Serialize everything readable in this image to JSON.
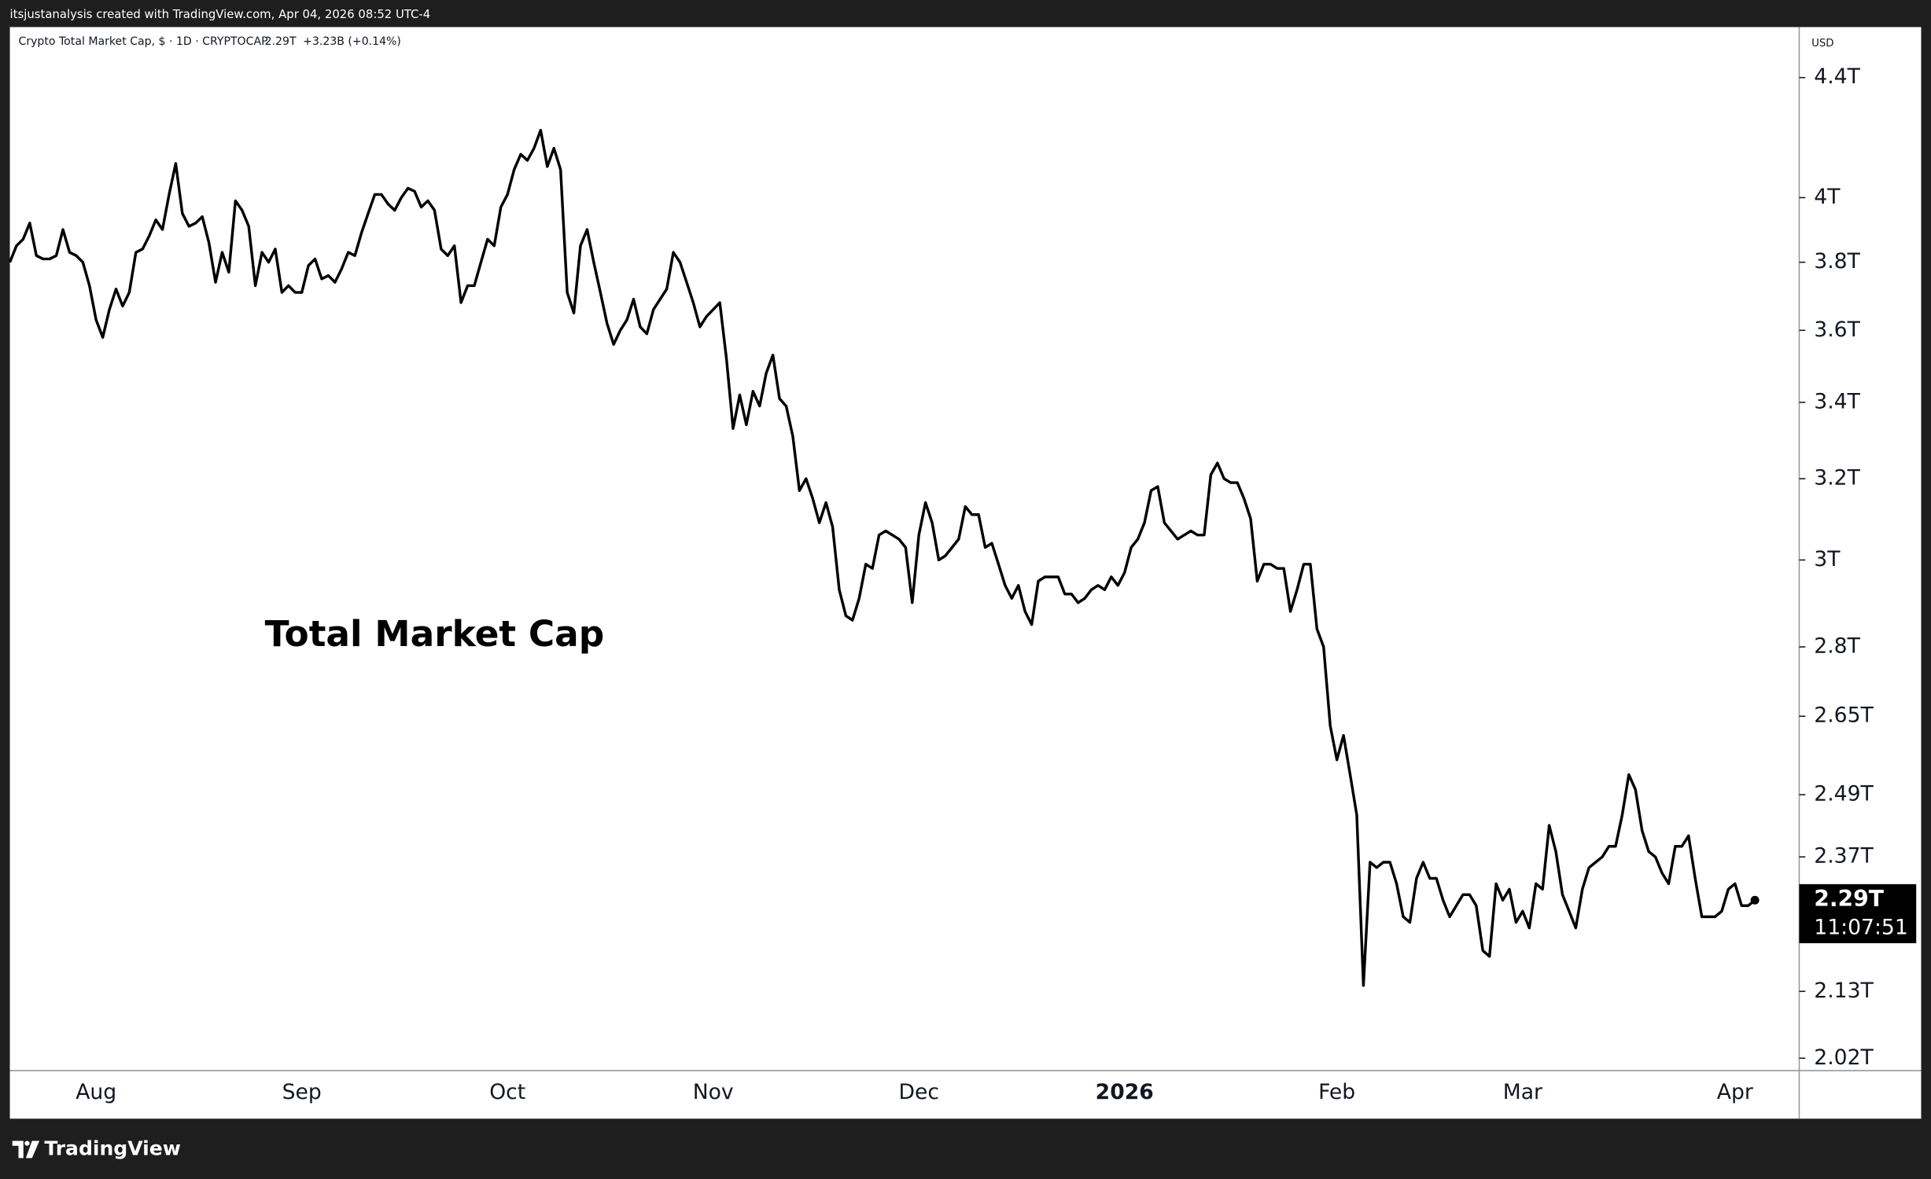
{
  "header": {
    "credit": "itsjustanalysis created with TradingView.com, Apr 04, 2026 08:52 UTC-4",
    "symbol": "Crypto Total Market Cap, $ · 1D · CRYPTOCAP",
    "last": "2.29T",
    "change": "+3.23B (+0.14%)",
    "currency": "USD"
  },
  "footer": {
    "brand": "TradingView"
  },
  "chart_data": {
    "type": "line",
    "annotation": "Total Market Cap",
    "scale": "log",
    "grid": false,
    "color": "#000000",
    "categories": [
      null,
      null,
      null,
      null,
      null,
      null,
      null,
      null,
      null,
      null,
      null,
      null,
      null,
      "Aug",
      null,
      null,
      null,
      null,
      null,
      null,
      null,
      null,
      null,
      null,
      null,
      null,
      null,
      null,
      null,
      null,
      null,
      null,
      null,
      null,
      null,
      null,
      null,
      null,
      null,
      null,
      null,
      null,
      null,
      null,
      "Sep",
      null,
      null,
      null,
      null,
      null,
      null,
      null,
      null,
      null,
      null,
      null,
      null,
      null,
      null,
      null,
      null,
      null,
      null,
      null,
      null,
      null,
      null,
      null,
      null,
      null,
      null,
      null,
      null,
      null,
      null,
      "Oct",
      null,
      null,
      null,
      null,
      null,
      null,
      null,
      null,
      null,
      null,
      null,
      null,
      null,
      null,
      null,
      null,
      null,
      null,
      null,
      null,
      null,
      null,
      null,
      null,
      null,
      null,
      null,
      null,
      null,
      null,
      "Nov",
      null,
      null,
      null,
      null,
      null,
      null,
      null,
      null,
      null,
      null,
      null,
      null,
      null,
      null,
      null,
      null,
      null,
      null,
      null,
      null,
      null,
      null,
      null,
      null,
      null,
      null,
      null,
      null,
      null,
      null,
      "Dec",
      null,
      null,
      null,
      null,
      null,
      null,
      null,
      null,
      null,
      null,
      null,
      null,
      null,
      null,
      null,
      null,
      null,
      null,
      null,
      null,
      null,
      null,
      null,
      null,
      null,
      null,
      null,
      null,
      null,
      null,
      "2026",
      null,
      null,
      null,
      null,
      null,
      null,
      null,
      null,
      null,
      null,
      null,
      null,
      null,
      null,
      null,
      null,
      null,
      null,
      null,
      null,
      null,
      null,
      null,
      null,
      null,
      null,
      null,
      null,
      null,
      null,
      null,
      "Feb",
      null,
      null,
      null,
      null,
      null,
      null,
      null,
      null,
      null,
      null,
      null,
      null,
      null,
      null,
      null,
      null,
      null,
      null,
      null,
      null,
      null,
      null,
      null,
      null,
      null,
      null,
      null,
      "Mar",
      null,
      null,
      null,
      null,
      null,
      null,
      null,
      null,
      null,
      null,
      null,
      null,
      null,
      null,
      null,
      null,
      null,
      null,
      null,
      null,
      null,
      null,
      null,
      null,
      null,
      null,
      null,
      null,
      null,
      null,
      null,
      "Apr",
      null,
      null,
      null
    ],
    "values": [
      3.8,
      3.85,
      3.87,
      3.92,
      3.82,
      3.81,
      3.81,
      3.82,
      3.9,
      3.83,
      3.82,
      3.8,
      3.73,
      3.63,
      3.58,
      3.66,
      3.72,
      3.67,
      3.71,
      3.83,
      3.84,
      3.88,
      3.93,
      3.9,
      4.01,
      4.11,
      3.95,
      3.91,
      3.92,
      3.94,
      3.86,
      3.74,
      3.83,
      3.77,
      3.99,
      3.96,
      3.91,
      3.73,
      3.83,
      3.8,
      3.84,
      3.71,
      3.73,
      3.71,
      3.71,
      3.79,
      3.81,
      3.75,
      3.76,
      3.74,
      3.78,
      3.83,
      3.82,
      3.89,
      3.95,
      4.01,
      4.01,
      3.98,
      3.96,
      4.0,
      4.03,
      4.02,
      3.97,
      3.99,
      3.96,
      3.84,
      3.82,
      3.85,
      3.68,
      3.73,
      3.73,
      3.8,
      3.87,
      3.85,
      3.97,
      4.01,
      4.09,
      4.14,
      4.12,
      4.16,
      4.22,
      4.1,
      4.16,
      4.09,
      3.71,
      3.65,
      3.85,
      3.9,
      3.8,
      3.71,
      3.62,
      3.56,
      3.6,
      3.63,
      3.69,
      3.61,
      3.59,
      3.66,
      3.69,
      3.72,
      3.83,
      3.8,
      3.74,
      3.68,
      3.61,
      3.64,
      3.66,
      3.68,
      3.52,
      3.33,
      3.42,
      3.34,
      3.43,
      3.39,
      3.48,
      3.53,
      3.41,
      3.39,
      3.31,
      3.17,
      3.2,
      3.15,
      3.09,
      3.14,
      3.08,
      2.93,
      2.87,
      2.86,
      2.91,
      2.99,
      2.98,
      3.06,
      3.07,
      3.06,
      3.05,
      3.03,
      2.9,
      3.06,
      3.14,
      3.09,
      3.0,
      3.01,
      3.03,
      3.05,
      3.13,
      3.11,
      3.11,
      3.03,
      3.04,
      2.99,
      2.94,
      2.91,
      2.94,
      2.88,
      2.85,
      2.95,
      2.96,
      2.96,
      2.96,
      2.92,
      2.92,
      2.9,
      2.91,
      2.93,
      2.94,
      2.93,
      2.96,
      2.94,
      2.97,
      3.03,
      3.05,
      3.09,
      3.17,
      3.18,
      3.09,
      3.07,
      3.05,
      3.06,
      3.07,
      3.06,
      3.06,
      3.21,
      3.24,
      3.2,
      3.19,
      3.19,
      3.15,
      3.1,
      2.95,
      2.99,
      2.99,
      2.98,
      2.98,
      2.88,
      2.93,
      2.99,
      2.99,
      2.84,
      2.8,
      2.63,
      2.56,
      2.61,
      2.53,
      2.45,
      2.14,
      2.36,
      2.35,
      2.36,
      2.36,
      2.32,
      2.26,
      2.25,
      2.33,
      2.36,
      2.33,
      2.33,
      2.29,
      2.26,
      2.28,
      2.3,
      2.3,
      2.28,
      2.2,
      2.19,
      2.32,
      2.29,
      2.31,
      2.25,
      2.27,
      2.24,
      2.32,
      2.31,
      2.43,
      2.38,
      2.3,
      2.27,
      2.24,
      2.31,
      2.35,
      2.36,
      2.37,
      2.39,
      2.39,
      2.45,
      2.53,
      2.5,
      2.42,
      2.38,
      2.37,
      2.34,
      2.32,
      2.39,
      2.39,
      2.41,
      2.33,
      2.26,
      2.26,
      2.26,
      2.27,
      2.31,
      2.32,
      2.28,
      2.28,
      2.29
    ],
    "price_label": {
      "value": 2.29,
      "label": "2.29T",
      "countdown": "11:07:51"
    },
    "ylim": [
      2.0,
      4.58
    ],
    "yticks": [
      {
        "value": 4.4,
        "label": "4.4T"
      },
      {
        "value": 4,
        "label": "4T"
      },
      {
        "value": 3.8,
        "label": "3.8T"
      },
      {
        "value": 3.6,
        "label": "3.6T"
      },
      {
        "value": 3.4,
        "label": "3.4T"
      },
      {
        "value": 3.2,
        "label": "3.2T"
      },
      {
        "value": 3,
        "label": "3T"
      },
      {
        "value": 2.8,
        "label": "2.8T"
      },
      {
        "value": 2.65,
        "label": "2.65T"
      },
      {
        "value": 2.49,
        "label": "2.49T"
      },
      {
        "value": 2.37,
        "label": "2.37T"
      },
      {
        "value": 2.13,
        "label": "2.13T"
      },
      {
        "value": 2.02,
        "label": "2.02T"
      }
    ]
  }
}
